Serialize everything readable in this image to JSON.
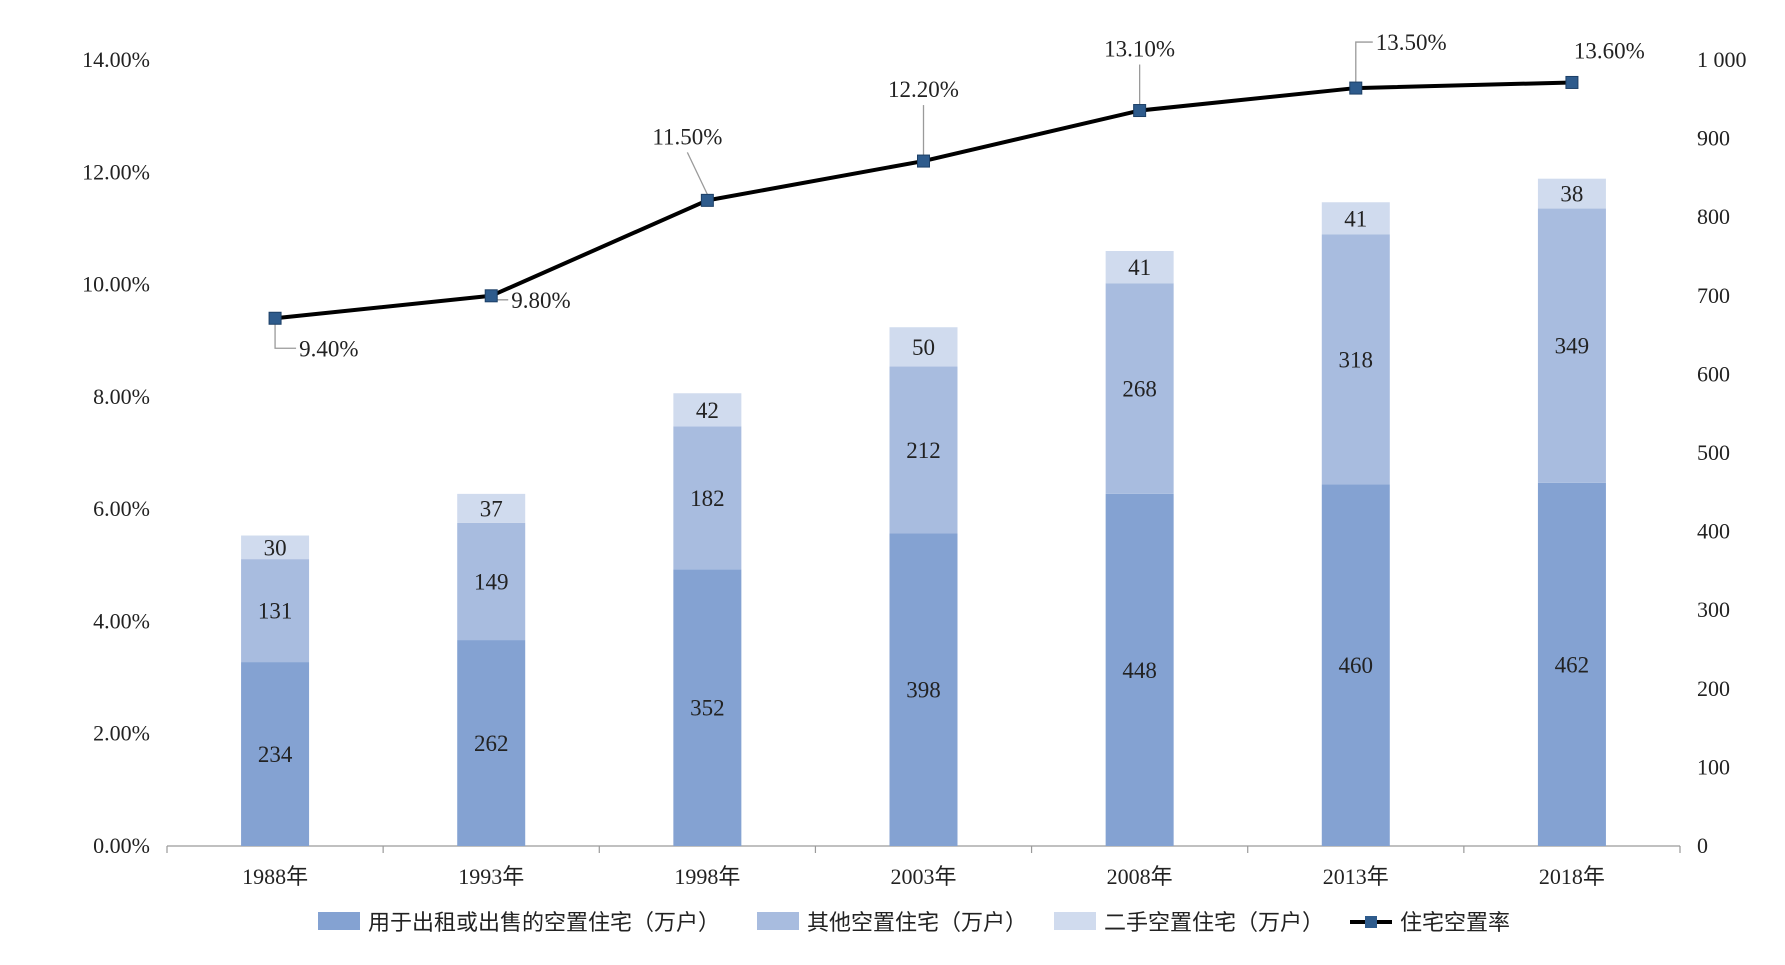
{
  "chart_data": {
    "type": "bar",
    "stacked": true,
    "title": "",
    "categories": [
      "1988年",
      "1993年",
      "1998年",
      "2003年",
      "2008年",
      "2013年",
      "2018年"
    ],
    "series": [
      {
        "name": "用于出租或出售的空置住宅（万户）",
        "type": "bar",
        "axis": "right",
        "color": "#84A2D2",
        "values": [
          234,
          262,
          352,
          398,
          448,
          460,
          462
        ]
      },
      {
        "name": "其他空置住宅（万户）",
        "type": "bar",
        "axis": "right",
        "color": "#A8BCDF",
        "values": [
          131,
          149,
          182,
          212,
          268,
          318,
          349
        ]
      },
      {
        "name": "二手空置住宅（万户）",
        "type": "bar",
        "axis": "right",
        "color": "#D0DBEE",
        "values": [
          30,
          37,
          42,
          50,
          41,
          41,
          38
        ]
      },
      {
        "name": "住宅空置率",
        "type": "line",
        "axis": "left",
        "color": "#000000",
        "marker_color": "#2E5B8C",
        "values": [
          9.4,
          9.8,
          11.5,
          12.2,
          13.1,
          13.5,
          13.6
        ],
        "labels": [
          "9.40%",
          "9.80%",
          "11.50%",
          "12.20%",
          "13.10%",
          "13.50%",
          "13.60%"
        ]
      }
    ],
    "y_left": {
      "range": [
        0,
        14
      ],
      "ticks": [
        "0.00%",
        "2.00%",
        "4.00%",
        "6.00%",
        "8.00%",
        "10.00%",
        "12.00%",
        "14.00%"
      ]
    },
    "y_right": {
      "range": [
        0,
        1000
      ],
      "ticks": [
        "0",
        "100",
        "200",
        "300",
        "400",
        "500",
        "600",
        "700",
        "800",
        "900",
        "1 000"
      ]
    },
    "legend_position": "bottom",
    "grid": false
  }
}
